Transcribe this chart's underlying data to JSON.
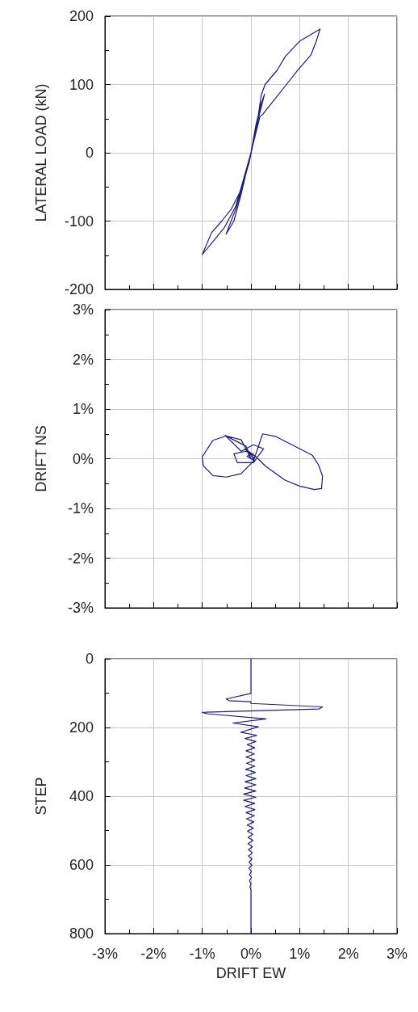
{
  "chart_data": [
    {
      "type": "line",
      "ylabel": "LATERAL LOAD (kN)",
      "xlim": [
        -3,
        3
      ],
      "xticks": [
        {
          "value": -3,
          "label": null
        },
        {
          "value": -2,
          "label": null
        },
        {
          "value": -1,
          "label": null
        },
        {
          "value": 0,
          "label": null
        },
        {
          "value": 1,
          "label": null
        },
        {
          "value": 2,
          "label": null
        },
        {
          "value": 3,
          "label": null
        }
      ],
      "ylim": [
        -200,
        200
      ],
      "yticks": [
        -200,
        -100,
        0,
        100,
        200
      ],
      "grid": true,
      "tick_labels": "y",
      "marker": "none",
      "line_style": "solid",
      "series": [
        {
          "color": "#1a1a8c",
          "x": [
            0,
            0.1,
            0.2,
            0.28,
            0.15,
            0,
            -0.2,
            -0.35,
            -0.51,
            -0.3,
            -0.1,
            0.1,
            0.21,
            0.29,
            0.54,
            0.705,
            1.01,
            1.42,
            1.34,
            1.23,
            0.95,
            0.73,
            0.46,
            0.24,
            0.18,
            0.1,
            0,
            -0.15,
            -0.31,
            -0.55,
            -1.0,
            -0.81,
            -0.6,
            -0.4,
            -0.2,
            -0.04,
            0.03
          ],
          "values": [
            0,
            40,
            70,
            86,
            50,
            0,
            -60,
            -100,
            -119,
            -80,
            -30,
            30,
            84,
            100,
            121,
            141,
            164,
            181,
            163,
            143,
            120,
            100,
            76,
            56,
            52,
            29,
            0,
            -38,
            -78,
            -110,
            -149,
            -117,
            -100,
            -82,
            -54,
            -15,
            8
          ]
        }
      ]
    },
    {
      "type": "line",
      "ylabel": "DRIFT NS",
      "xlim": [
        -3,
        3
      ],
      "xticks": [
        {
          "value": -3,
          "label": null
        },
        {
          "value": -2,
          "label": null
        },
        {
          "value": -1,
          "label": null
        },
        {
          "value": 0,
          "label": null
        },
        {
          "value": 1,
          "label": null
        },
        {
          "value": 2,
          "label": null
        },
        {
          "value": 3,
          "label": null
        }
      ],
      "ylim": [
        -3,
        3
      ],
      "yticks": [
        {
          "value": -3,
          "label": "-3%"
        },
        {
          "value": -2,
          "label": "-2%"
        },
        {
          "value": -1,
          "label": "-1%"
        },
        {
          "value": 0,
          "label": "0%"
        },
        {
          "value": 1,
          "label": "1%"
        },
        {
          "value": 2,
          "label": "2%"
        },
        {
          "value": 3,
          "label": "3%"
        }
      ],
      "grid": true,
      "tick_labels": "y",
      "marker": "none",
      "line_style": "solid",
      "series": [
        {
          "color": "#1a1a8c",
          "x": [
            0,
            0.1,
            -0.1,
            -0.35,
            -0.28,
            0.05,
            0.26,
            0.05,
            -0.2,
            -0.53,
            -0.1,
            0,
            -0.2,
            -0.51,
            -0.78,
            -1.0,
            -0.98,
            -0.78,
            -0.51,
            -0.2,
            0.05,
            0.24,
            0.5,
            0.98,
            1.26,
            1.39,
            1.47,
            1.45,
            1.3,
            1.0,
            0.7,
            0.3,
            0.1,
            -0.05,
            0.08,
            -0.08,
            0.05,
            0.02
          ],
          "values": [
            0,
            0.05,
            0.15,
            0.1,
            -0.08,
            -0.08,
            0.2,
            0.28,
            0.15,
            0.47,
            0.25,
            0,
            0.38,
            0.46,
            0.37,
            0.04,
            -0.14,
            -0.34,
            -0.37,
            -0.3,
            -0.05,
            0.5,
            0.45,
            0.21,
            0.07,
            -0.13,
            -0.35,
            -0.6,
            -0.62,
            -0.55,
            -0.43,
            -0.15,
            0.04,
            0.15,
            -0.05,
            0.05,
            0.1,
            0.03
          ]
        }
      ]
    },
    {
      "type": "line",
      "ylabel": "STEP",
      "xlabel": "DRIFT EW",
      "xlim": [
        -3,
        3
      ],
      "xticks": [
        {
          "value": -3,
          "label": "-3%"
        },
        {
          "value": -2,
          "label": "-2%"
        },
        {
          "value": -1,
          "label": "-1%"
        },
        {
          "value": 0,
          "label": "0%"
        },
        {
          "value": 1,
          "label": "1%"
        },
        {
          "value": 2,
          "label": "2%"
        },
        {
          "value": 3,
          "label": "3%"
        }
      ],
      "ylim": [
        800,
        0
      ],
      "yticks": [
        0,
        200,
        400,
        600,
        800
      ],
      "grid": true,
      "marker": "none",
      "line_style": "solid",
      "series": [
        {
          "color": "#1a1a8c",
          "x": [
            0,
            0,
            -0.51,
            -0.45,
            0,
            0,
            1.47,
            1.4,
            -1.0,
            -0.9,
            0.31,
            -0.37,
            0.15,
            -0.21,
            0.12,
            -0.12,
            0.1,
            -0.08,
            0.08,
            -0.1,
            0.07,
            -0.1,
            0.08,
            -0.09,
            0.08,
            -0.11,
            0.09,
            -0.1,
            0.1,
            -0.12,
            0.1,
            -0.13,
            0.1,
            -0.15,
            0.1,
            -0.15,
            0.08,
            -0.12,
            0.08,
            -0.1,
            0.07,
            -0.09,
            0.06,
            -0.08,
            0.05,
            -0.07,
            0.04,
            -0.06,
            0.04,
            -0.06,
            0.03,
            -0.05,
            0.03,
            -0.05,
            0.02,
            -0.04,
            0.02,
            -0.04,
            0.01,
            -0.03,
            0.01,
            -0.03,
            0,
            -0.02,
            0,
            0,
            0
          ],
          "values": [
            0,
            101,
            117,
            122,
            125,
            130,
            140,
            146,
            156,
            160,
            175,
            187,
            198,
            214,
            223,
            232,
            241,
            250,
            259,
            268,
            277,
            286,
            295,
            304,
            313,
            322,
            331,
            340,
            349,
            358,
            367,
            376,
            385,
            394,
            403,
            412,
            421,
            430,
            439,
            448,
            457,
            466,
            475,
            484,
            493,
            502,
            511,
            520,
            529,
            538,
            547,
            556,
            565,
            574,
            583,
            592,
            601,
            610,
            619,
            628,
            637,
            646,
            655,
            664,
            673,
            683,
            800
          ]
        }
      ]
    }
  ]
}
